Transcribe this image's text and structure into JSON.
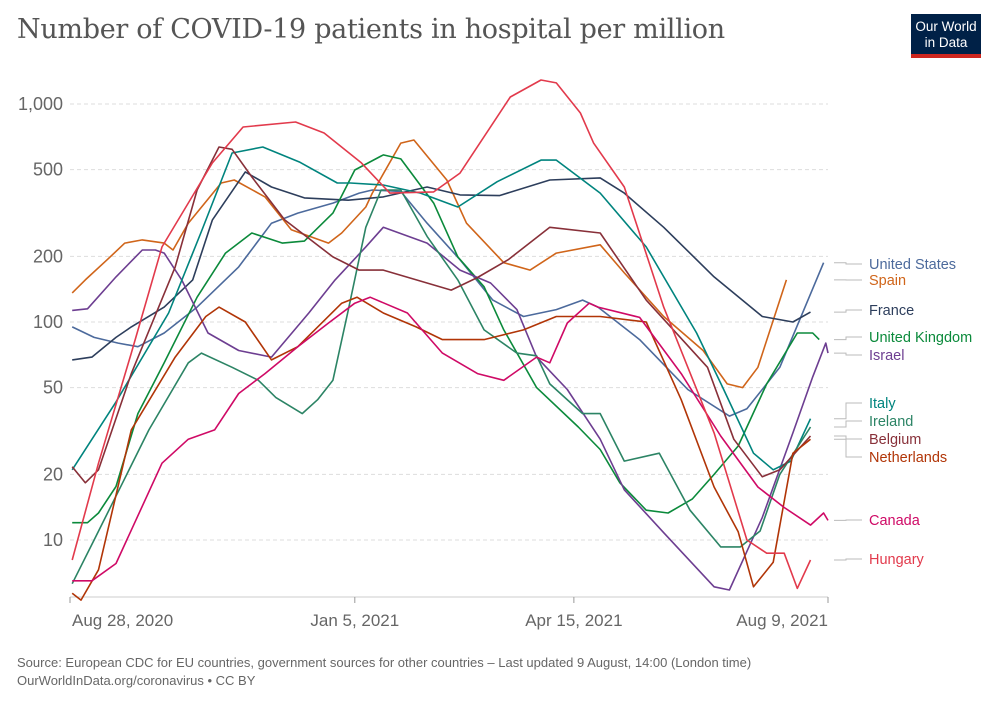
{
  "header": {
    "title": "Number of COVID-19 patients in hospital per million",
    "logo": "Our World in Data"
  },
  "footer": {
    "source": "Source: European CDC for EU countries, government sources for other countries – Last updated 9 August, 14:00 (London time)",
    "credit": "OurWorldInData.org/coronavirus • CC BY"
  },
  "chart_data": {
    "type": "line",
    "title": "Number of COVID-19 patients in hospital per million",
    "xlabel": "",
    "ylabel": "",
    "x_unit": "days since Aug 28, 2020",
    "xlim": [
      0,
      346
    ],
    "x_ticks": [
      {
        "label": "Aug 28, 2020",
        "x": 0
      },
      {
        "label": "Jan 5, 2021",
        "x": 130
      },
      {
        "label": "Apr 15, 2021",
        "x": 230
      },
      {
        "label": "Aug 9, 2021",
        "x": 346
      }
    ],
    "y_scale": "log",
    "ylim": [
      5,
      1400
    ],
    "y_ticks": [
      {
        "label": "10",
        "v": 10
      },
      {
        "label": "20",
        "v": 20
      },
      {
        "label": "50",
        "v": 50
      },
      {
        "label": "100",
        "v": 100
      },
      {
        "label": "200",
        "v": 200
      },
      {
        "label": "500",
        "v": 500
      },
      {
        "label": "1,000",
        "v": 1000
      }
    ],
    "grid": true,
    "legend": "right, end-of-line labels",
    "series": [
      {
        "name": "United States",
        "color": "#4c6a9c",
        "points": [
          [
            1,
            95
          ],
          [
            11,
            85
          ],
          [
            22,
            80
          ],
          [
            31,
            77
          ],
          [
            43,
            89
          ],
          [
            58,
            117
          ],
          [
            77,
            179
          ],
          [
            92,
            284
          ],
          [
            104,
            316
          ],
          [
            120,
            351
          ],
          [
            132,
            390
          ],
          [
            138,
            403
          ],
          [
            151,
            397
          ],
          [
            163,
            284
          ],
          [
            178,
            193
          ],
          [
            193,
            126
          ],
          [
            207,
            106
          ],
          [
            222,
            114
          ],
          [
            234,
            126
          ],
          [
            241,
            117
          ],
          [
            260,
            83
          ],
          [
            282,
            49
          ],
          [
            301,
            37
          ],
          [
            309,
            40
          ],
          [
            324,
            62
          ],
          [
            344,
            187
          ]
        ]
      },
      {
        "name": "Spain",
        "color": "#d0651a",
        "points": [
          [
            1,
            136
          ],
          [
            7,
            156
          ],
          [
            17,
            193
          ],
          [
            25,
            230
          ],
          [
            33,
            238
          ],
          [
            43,
            230
          ],
          [
            47,
            214
          ],
          [
            54,
            284
          ],
          [
            69,
            434
          ],
          [
            75,
            448
          ],
          [
            89,
            375
          ],
          [
            101,
            265
          ],
          [
            118,
            230
          ],
          [
            124,
            256
          ],
          [
            135,
            337
          ],
          [
            138,
            390
          ],
          [
            151,
            662
          ],
          [
            157,
            684
          ],
          [
            172,
            448
          ],
          [
            181,
            284
          ],
          [
            198,
            187
          ],
          [
            210,
            173
          ],
          [
            222,
            207
          ],
          [
            242,
            226
          ],
          [
            253,
            168
          ],
          [
            271,
            106
          ],
          [
            289,
            74
          ],
          [
            300,
            52
          ],
          [
            307,
            50
          ],
          [
            314,
            62
          ],
          [
            327,
            156
          ]
        ]
      },
      {
        "name": "France",
        "color": "#2d3e5c",
        "points": [
          [
            1,
            67
          ],
          [
            10,
            69
          ],
          [
            21,
            85
          ],
          [
            28,
            95
          ],
          [
            43,
            117
          ],
          [
            56,
            156
          ],
          [
            65,
            294
          ],
          [
            80,
            488
          ],
          [
            92,
            416
          ],
          [
            107,
            371
          ],
          [
            127,
            362
          ],
          [
            143,
            375
          ],
          [
            163,
            416
          ],
          [
            178,
            383
          ],
          [
            196,
            380
          ],
          [
            219,
            448
          ],
          [
            242,
            458
          ],
          [
            253,
            390
          ],
          [
            271,
            272
          ],
          [
            294,
            161
          ],
          [
            316,
            106
          ],
          [
            330,
            100
          ],
          [
            338,
            111
          ]
        ]
      },
      {
        "name": "United Kingdom",
        "color": "#0b8a3b",
        "points": [
          [
            1,
            12
          ],
          [
            8,
            12
          ],
          [
            13,
            13.3
          ],
          [
            21,
            17.6
          ],
          [
            31,
            38
          ],
          [
            43,
            65
          ],
          [
            58,
            130
          ],
          [
            71,
            207
          ],
          [
            83,
            256
          ],
          [
            97,
            230
          ],
          [
            107,
            235
          ],
          [
            120,
            316
          ],
          [
            130,
            498
          ],
          [
            143,
            584
          ],
          [
            151,
            560
          ],
          [
            166,
            351
          ],
          [
            177,
            199
          ],
          [
            189,
            145
          ],
          [
            198,
            92
          ],
          [
            213,
            50
          ],
          [
            232,
            33
          ],
          [
            242,
            26
          ],
          [
            251,
            18.3
          ],
          [
            263,
            13.7
          ],
          [
            273,
            13.3
          ],
          [
            284,
            15.4
          ],
          [
            294,
            20
          ],
          [
            305,
            27
          ],
          [
            318,
            52
          ],
          [
            332,
            89
          ],
          [
            339,
            89
          ],
          [
            342,
            83
          ]
        ]
      },
      {
        "name": "Israel",
        "color": "#6d3e91",
        "points": [
          [
            1,
            113
          ],
          [
            8,
            115
          ],
          [
            21,
            161
          ],
          [
            33,
            214
          ],
          [
            39,
            214
          ],
          [
            43,
            207
          ],
          [
            51,
            156
          ],
          [
            63,
            89
          ],
          [
            77,
            74
          ],
          [
            92,
            69
          ],
          [
            109,
            110
          ],
          [
            121,
            156
          ],
          [
            135,
            221
          ],
          [
            143,
            272
          ],
          [
            163,
            230
          ],
          [
            178,
            173
          ],
          [
            192,
            151
          ],
          [
            204,
            114
          ],
          [
            213,
            69
          ],
          [
            227,
            49
          ],
          [
            242,
            29
          ],
          [
            253,
            17
          ],
          [
            271,
            10.8
          ],
          [
            294,
            6.1
          ],
          [
            301,
            5.9
          ],
          [
            316,
            12.7
          ],
          [
            330,
            31
          ],
          [
            339,
            56
          ],
          [
            345,
            80
          ],
          [
            346,
            72
          ]
        ]
      },
      {
        "name": "Italy",
        "color": "#00847e",
        "points": [
          [
            1,
            21
          ],
          [
            21,
            43
          ],
          [
            45,
            110
          ],
          [
            60,
            260
          ],
          [
            74,
            596
          ],
          [
            88,
            635
          ],
          [
            105,
            540
          ],
          [
            122,
            434
          ],
          [
            128,
            434
          ],
          [
            143,
            425
          ],
          [
            160,
            390
          ],
          [
            177,
            337
          ],
          [
            195,
            440
          ],
          [
            215,
            553
          ],
          [
            222,
            553
          ],
          [
            242,
            390
          ],
          [
            263,
            221
          ],
          [
            286,
            89
          ],
          [
            298,
            50
          ],
          [
            312,
            25
          ],
          [
            321,
            21
          ],
          [
            329,
            23
          ],
          [
            338,
            36
          ]
        ]
      },
      {
        "name": "Ireland",
        "color": "#2c8465",
        "points": [
          [
            1,
            6.3
          ],
          [
            11,
            10
          ],
          [
            24,
            18.3
          ],
          [
            36,
            32
          ],
          [
            54,
            65
          ],
          [
            60,
            72
          ],
          [
            74,
            62
          ],
          [
            86,
            54
          ],
          [
            94,
            45
          ],
          [
            106,
            38
          ],
          [
            113,
            44
          ],
          [
            120,
            54
          ],
          [
            127,
            113
          ],
          [
            135,
            272
          ],
          [
            142,
            403
          ],
          [
            151,
            403
          ],
          [
            163,
            247
          ],
          [
            177,
            156
          ],
          [
            189,
            92
          ],
          [
            204,
            72
          ],
          [
            213,
            70
          ],
          [
            219,
            52
          ],
          [
            234,
            38
          ],
          [
            242,
            38
          ],
          [
            253,
            23
          ],
          [
            269,
            25
          ],
          [
            283,
            13.7
          ],
          [
            297,
            9.3
          ],
          [
            306,
            9.3
          ],
          [
            315,
            11
          ],
          [
            324,
            20
          ],
          [
            338,
            33
          ]
        ]
      },
      {
        "name": "Belgium",
        "color": "#883039",
        "points": [
          [
            1,
            21.7
          ],
          [
            7,
            18.3
          ],
          [
            13,
            21
          ],
          [
            28,
            58
          ],
          [
            48,
            179
          ],
          [
            58,
            403
          ],
          [
            68,
            635
          ],
          [
            74,
            620
          ],
          [
            83,
            463
          ],
          [
            98,
            294
          ],
          [
            120,
            199
          ],
          [
            132,
            173
          ],
          [
            143,
            173
          ],
          [
            174,
            140
          ],
          [
            186,
            160
          ],
          [
            200,
            193
          ],
          [
            219,
            272
          ],
          [
            242,
            256
          ],
          [
            263,
            126
          ],
          [
            291,
            62
          ],
          [
            303,
            29
          ],
          [
            316,
            19.5
          ],
          [
            324,
            21
          ],
          [
            338,
            30
          ]
        ]
      },
      {
        "name": "Netherlands",
        "color": "#b13507",
        "points": [
          [
            1,
            5.7
          ],
          [
            5,
            5.3
          ],
          [
            13,
            7.3
          ],
          [
            28,
            32
          ],
          [
            48,
            69
          ],
          [
            62,
            106
          ],
          [
            68,
            117
          ],
          [
            80,
            100
          ],
          [
            92,
            67
          ],
          [
            104,
            77
          ],
          [
            124,
            122
          ],
          [
            131,
            130
          ],
          [
            143,
            110
          ],
          [
            158,
            95
          ],
          [
            170,
            83
          ],
          [
            189,
            83
          ],
          [
            207,
            92
          ],
          [
            222,
            106
          ],
          [
            242,
            106
          ],
          [
            263,
            100
          ],
          [
            279,
            44
          ],
          [
            294,
            17.5
          ],
          [
            305,
            10.9
          ],
          [
            312,
            6.1
          ],
          [
            321,
            7.9
          ],
          [
            330,
            25
          ],
          [
            338,
            29
          ]
        ]
      },
      {
        "name": "Canada",
        "color": "#cf0a66",
        "points": [
          [
            1,
            6.5
          ],
          [
            10,
            6.5
          ],
          [
            21,
            7.8
          ],
          [
            42,
            22.5
          ],
          [
            54,
            29
          ],
          [
            66,
            32
          ],
          [
            77,
            47
          ],
          [
            89,
            58
          ],
          [
            104,
            77
          ],
          [
            118,
            99
          ],
          [
            130,
            122
          ],
          [
            137,
            130
          ],
          [
            154,
            110
          ],
          [
            170,
            72
          ],
          [
            186,
            58
          ],
          [
            198,
            54
          ],
          [
            213,
            69
          ],
          [
            219,
            65
          ],
          [
            227,
            99
          ],
          [
            237,
            122
          ],
          [
            241,
            117
          ],
          [
            260,
            105
          ],
          [
            279,
            58
          ],
          [
            297,
            30
          ],
          [
            314,
            17.5
          ],
          [
            326,
            14.1
          ],
          [
            338,
            11.7
          ],
          [
            344,
            13.3
          ],
          [
            346,
            12.3
          ]
        ]
      },
      {
        "name": "Hungary",
        "color": "#e23a4c",
        "points": [
          [
            1,
            8.1
          ],
          [
            13,
            22.5
          ],
          [
            28,
            72
          ],
          [
            42,
            221
          ],
          [
            65,
            537
          ],
          [
            79,
            784
          ],
          [
            103,
            827
          ],
          [
            116,
            736
          ],
          [
            133,
            537
          ],
          [
            146,
            390
          ],
          [
            166,
            395
          ],
          [
            178,
            482
          ],
          [
            201,
            1077
          ],
          [
            215,
            1288
          ],
          [
            222,
            1250
          ],
          [
            233,
            909
          ],
          [
            239,
            662
          ],
          [
            253,
            416
          ],
          [
            271,
            117
          ],
          [
            294,
            31
          ],
          [
            309,
            10
          ],
          [
            318,
            8.7
          ],
          [
            326,
            8.7
          ],
          [
            332,
            6
          ],
          [
            338,
            8.1
          ]
        ]
      }
    ]
  }
}
